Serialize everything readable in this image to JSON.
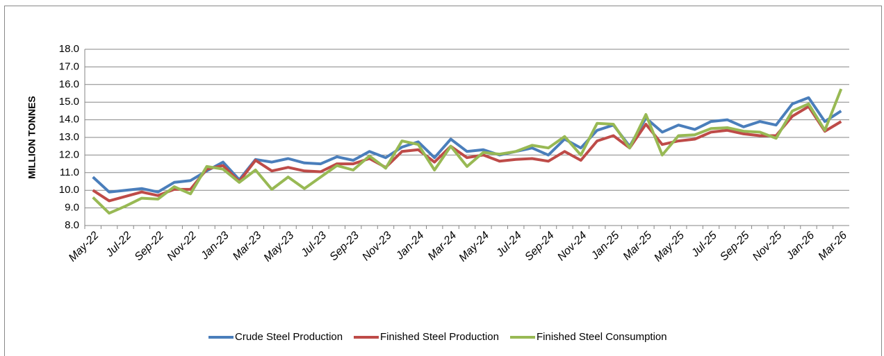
{
  "chart_data": {
    "type": "line",
    "y_label": "MILLION TONNES",
    "categories": [
      "May-22",
      null,
      "Jul-22",
      null,
      "Sep-22",
      null,
      "Nov-22",
      null,
      "Jan-23",
      null,
      "Mar-23",
      null,
      "May-23",
      null,
      "Jul-23",
      null,
      "Sep-23",
      null,
      "Nov-23",
      null,
      "Jan-24",
      null,
      "Mar-24",
      null,
      "May-24",
      null,
      "Jul-24",
      null,
      "Sep-24",
      null,
      "Nov-24",
      null,
      "Jan-25",
      null,
      "Mar-25",
      null,
      "May-25",
      null,
      "Jul-25",
      null,
      "Sep-25",
      null,
      "Nov-25",
      null,
      "Jan-26",
      null,
      "Mar-26"
    ],
    "series": [
      {
        "name": "Crude Steel Production",
        "color": "#4a7ebb",
        "values": [
          10.75,
          9.9,
          10.0,
          10.1,
          9.9,
          10.45,
          10.55,
          11.1,
          11.6,
          10.6,
          11.75,
          11.6,
          11.8,
          11.55,
          11.5,
          11.9,
          11.7,
          12.2,
          11.85,
          12.45,
          12.75,
          11.85,
          12.9,
          12.2,
          12.3,
          12.0,
          12.2,
          12.4,
          12.0,
          12.9,
          12.4,
          13.4,
          13.7,
          12.5,
          14.1,
          13.3,
          13.7,
          13.45,
          13.9,
          14.0,
          13.6,
          13.9,
          13.7,
          14.9,
          15.25,
          13.9,
          14.5
        ]
      },
      {
        "name": "Finished Steel Production",
        "color": "#be4b48",
        "values": [
          10.0,
          9.4,
          9.65,
          9.9,
          9.7,
          10.05,
          10.05,
          11.2,
          11.4,
          10.5,
          11.7,
          11.1,
          11.3,
          11.1,
          11.05,
          11.5,
          11.5,
          11.8,
          11.3,
          12.2,
          12.3,
          11.6,
          12.5,
          11.85,
          12.0,
          11.65,
          11.75,
          11.8,
          11.65,
          12.2,
          11.7,
          12.8,
          13.1,
          12.4,
          13.75,
          12.6,
          12.8,
          12.9,
          13.3,
          13.4,
          13.2,
          13.1,
          13.1,
          14.2,
          14.75,
          13.35,
          13.9
        ]
      },
      {
        "name": "Finished Steel Consumption",
        "color": "#98b954",
        "values": [
          9.6,
          8.7,
          9.1,
          9.55,
          9.5,
          10.2,
          9.8,
          11.35,
          11.2,
          10.45,
          11.15,
          10.05,
          10.75,
          10.1,
          10.75,
          11.4,
          11.15,
          11.95,
          11.25,
          12.8,
          12.6,
          11.15,
          12.5,
          11.35,
          12.15,
          12.05,
          12.2,
          12.55,
          12.4,
          13.05,
          12.0,
          13.8,
          13.75,
          12.4,
          14.3,
          12.0,
          13.1,
          13.15,
          13.5,
          13.55,
          13.35,
          13.3,
          12.95,
          14.5,
          14.9,
          13.4,
          15.75
        ]
      }
    ],
    "ylim": [
      8,
      18
    ],
    "yticks": [
      {
        "value": 8,
        "label": "8.0"
      },
      {
        "value": 9,
        "label": "9.0"
      },
      {
        "value": 10,
        "label": "10.0"
      },
      {
        "value": 11,
        "label": "11.0"
      },
      {
        "value": 12,
        "label": "12.0"
      },
      {
        "value": 13,
        "label": "13.0"
      },
      {
        "value": 14,
        "label": "14.0"
      },
      {
        "value": 15,
        "label": "15.0"
      },
      {
        "value": 16,
        "label": "16.0"
      },
      {
        "value": 17,
        "label": "17.0"
      },
      {
        "value": 18,
        "label": "18.0"
      }
    ],
    "grid": true,
    "legend": "bottom"
  }
}
